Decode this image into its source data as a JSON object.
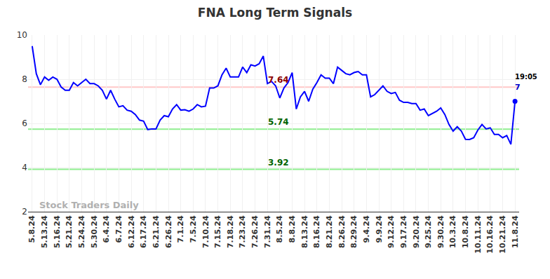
{
  "chart_data": {
    "type": "line",
    "title": "FNA Long Term Signals",
    "color": "#0000ff",
    "grid": true,
    "ylim": [
      2,
      10
    ],
    "yticks": [
      2,
      4,
      6,
      8,
      10
    ],
    "categories": [
      "5.8.24",
      null,
      null,
      "5.13.24",
      null,
      null,
      "5.16.24",
      null,
      null,
      "5.21.24",
      null,
      null,
      "5.24.24",
      null,
      null,
      "5.30.24",
      null,
      null,
      "6.4.24",
      null,
      null,
      "6.7.24",
      null,
      null,
      "6.12.24",
      null,
      null,
      "6.17.24",
      null,
      null,
      "6.21.24",
      null,
      null,
      "6.26.24",
      null,
      null,
      "7.1.24",
      null,
      null,
      "7.5.24",
      null,
      null,
      "7.10.24",
      null,
      null,
      "7.15.24",
      null,
      null,
      "7.18.24",
      null,
      null,
      "7.23.24",
      null,
      null,
      "7.26.24",
      null,
      null,
      "7.31.24",
      null,
      null,
      "8.5.24",
      null,
      null,
      "8.8.24",
      null,
      null,
      "8.13.24",
      null,
      null,
      "8.16.24",
      null,
      null,
      "8.21.24",
      null,
      null,
      "8.26.24",
      null,
      null,
      "8.29.24",
      null,
      null,
      "9.4.24",
      null,
      null,
      "9.9.24",
      null,
      null,
      "9.12.24",
      null,
      null,
      "9.17.24",
      null,
      null,
      "9.20.24",
      null,
      null,
      "9.25.24",
      null,
      null,
      "9.30.24",
      null,
      null,
      "10.3.24",
      null,
      null,
      "10.8.24",
      null,
      null,
      "10.11.24",
      null,
      null,
      "10.16.24",
      null,
      null,
      "10.21.24",
      null,
      null,
      "11.8.24"
    ],
    "values": [
      9.5,
      8.25,
      7.75,
      8.1,
      7.95,
      8.1,
      8.0,
      7.65,
      7.5,
      7.5,
      7.85,
      7.7,
      7.85,
      8.0,
      7.8,
      7.8,
      7.7,
      7.5,
      7.1,
      7.5,
      7.1,
      6.75,
      6.8,
      6.6,
      6.55,
      6.4,
      6.15,
      6.1,
      5.72,
      5.75,
      5.75,
      6.15,
      6.35,
      6.3,
      6.65,
      6.85,
      6.6,
      6.62,
      6.55,
      6.65,
      6.85,
      6.75,
      6.78,
      7.6,
      7.6,
      7.7,
      8.2,
      8.5,
      8.1,
      8.1,
      8.1,
      8.55,
      8.3,
      8.65,
      8.6,
      8.7,
      9.05,
      7.8,
      7.9,
      7.7,
      7.15,
      7.6,
      7.85,
      8.3,
      6.65,
      7.2,
      7.45,
      7.0,
      7.55,
      7.85,
      8.2,
      8.05,
      8.05,
      7.8,
      8.55,
      8.4,
      8.25,
      8.2,
      8.3,
      8.35,
      8.2,
      8.2,
      7.2,
      7.3,
      7.5,
      7.7,
      7.45,
      7.35,
      7.4,
      7.05,
      6.95,
      6.95,
      6.9,
      6.9,
      6.6,
      6.65,
      6.35,
      6.45,
      6.55,
      6.7,
      6.4,
      5.95,
      5.65,
      5.85,
      5.65,
      5.28,
      5.27,
      5.35,
      5.7,
      5.95,
      5.75,
      5.8,
      5.5,
      5.5,
      5.35,
      5.45,
      5.05,
      7.0
    ],
    "levels": [
      {
        "value": 7.64,
        "label": "7.64",
        "color": "#ffc8c8",
        "label_color": "#8b0000"
      },
      {
        "value": 5.74,
        "label": "5.74",
        "color": "#90ee90",
        "label_color": "#006400"
      },
      {
        "value": 3.92,
        "label": "3.92",
        "color": "#90ee90",
        "label_color": "#006400"
      }
    ],
    "last_point": {
      "time": "19:05",
      "label": "7"
    },
    "watermark": "Stock Traders Daily"
  }
}
